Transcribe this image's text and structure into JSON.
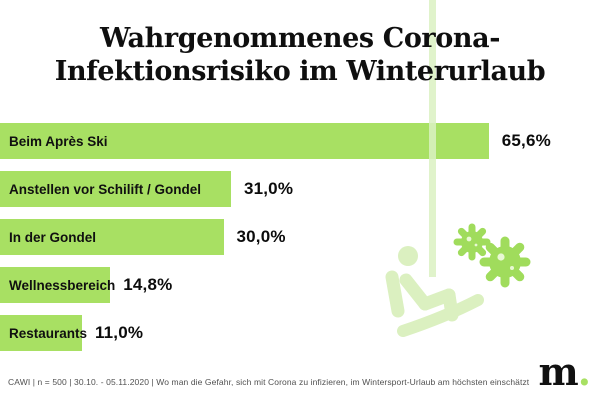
{
  "title": {
    "line1": "Wahrgenommenes Corona-",
    "line2": "Infektionsrisiko im Winterurlaub"
  },
  "chart_data": {
    "type": "bar",
    "orientation": "horizontal",
    "title": "Wahrgenommenes Corona-Infektionsrisiko im Winterurlaub",
    "categories": [
      "Beim Après Ski",
      "Anstellen vor Schilift / Gondel",
      "In der Gondel",
      "Wellnessbereich",
      "Restaurants"
    ],
    "values": [
      65.6,
      31.0,
      30.0,
      14.8,
      11.0
    ],
    "value_labels": [
      "65,6%",
      "31,0%",
      "30,0%",
      "14,8%",
      "11,0%"
    ],
    "unit": "%",
    "xlim": [
      0,
      80
    ],
    "grid": false,
    "legend": false,
    "bar_labels_inside": true
  },
  "footer": {
    "note": "CAWI | n = 500 | 30.10. - 05.11.2020 | Wo man die Gefahr, sich mit Corona zu infizieren, im Wintersport-Urlaub am höchsten einschätzt"
  },
  "logo": {
    "letter": "m",
    "dot": "."
  },
  "icons": {
    "illustration": "ski-lift-skier-with-virus-icons",
    "viruses": [
      "virus-icon-small",
      "virus-icon-large"
    ]
  },
  "colors": {
    "bar_green": "#a8e063",
    "pale_green": "#dbf0c0",
    "virus_green": "#a0dc5c",
    "title_black": "#0f0f0f",
    "footer_gray": "#515151",
    "background": "#ffffff"
  }
}
